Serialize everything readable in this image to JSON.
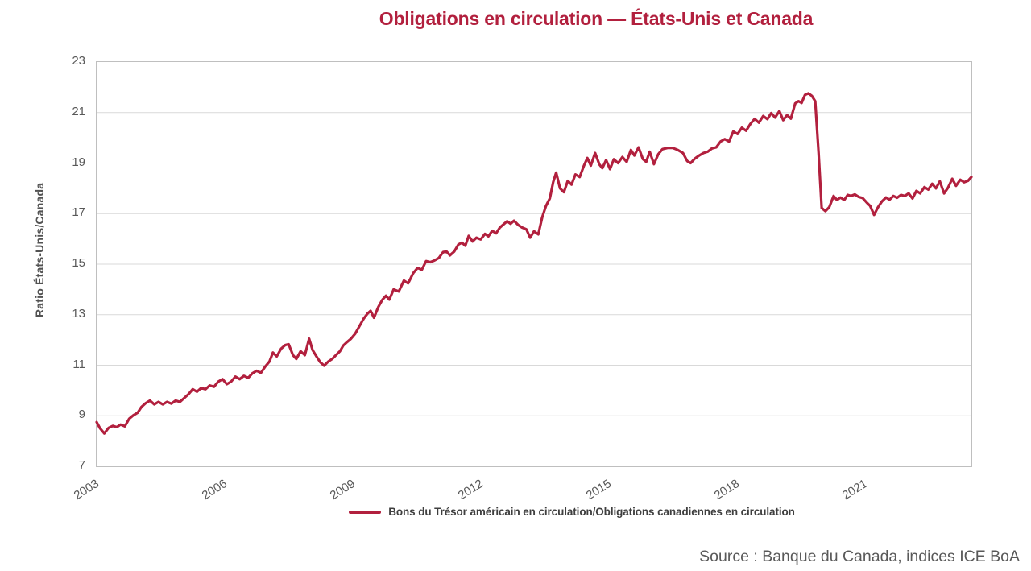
{
  "source": "Source : Banque du Canada, indices ICE BoA",
  "colors": {
    "accent": "#b2203e",
    "axis_text": "#595959",
    "axis_title_text": "#525252",
    "legend_text": "#3f3f3f",
    "gridline": "#d9d9d9",
    "plot_border": "#bfbfbf"
  },
  "chart_data": {
    "type": "line",
    "title": "Obligations en circulation — États-Unis et Canada",
    "ylabel": "Ratio États-Unis/Canada",
    "xlabel": "",
    "ylim": [
      7,
      23
    ],
    "xlim": [
      2003,
      2023.5
    ],
    "y_ticks": [
      7,
      9,
      11,
      13,
      15,
      17,
      19,
      21,
      23
    ],
    "x_ticks": [
      2003,
      2006,
      2009,
      2012,
      2015,
      2018,
      2021
    ],
    "grid": "horizontal",
    "legend_position": "bottom",
    "series": [
      {
        "name": "Bons du Trésor américain en circulation/Obligations canadiennes en circulation",
        "color": "#b2203e",
        "points": [
          [
            2003.0,
            8.75
          ],
          [
            2003.08,
            8.5
          ],
          [
            2003.18,
            8.3
          ],
          [
            2003.28,
            8.52
          ],
          [
            2003.38,
            8.6
          ],
          [
            2003.47,
            8.55
          ],
          [
            2003.56,
            8.65
          ],
          [
            2003.66,
            8.58
          ],
          [
            2003.76,
            8.88
          ],
          [
            2003.86,
            9.02
          ],
          [
            2003.96,
            9.12
          ],
          [
            2004.05,
            9.35
          ],
          [
            2004.15,
            9.5
          ],
          [
            2004.25,
            9.6
          ],
          [
            2004.35,
            9.45
          ],
          [
            2004.45,
            9.55
          ],
          [
            2004.55,
            9.45
          ],
          [
            2004.65,
            9.55
          ],
          [
            2004.75,
            9.48
          ],
          [
            2004.85,
            9.6
          ],
          [
            2004.95,
            9.55
          ],
          [
            2005.05,
            9.7
          ],
          [
            2005.15,
            9.85
          ],
          [
            2005.25,
            10.05
          ],
          [
            2005.35,
            9.95
          ],
          [
            2005.45,
            10.1
          ],
          [
            2005.55,
            10.05
          ],
          [
            2005.65,
            10.2
          ],
          [
            2005.75,
            10.15
          ],
          [
            2005.85,
            10.35
          ],
          [
            2005.95,
            10.45
          ],
          [
            2006.05,
            10.25
          ],
          [
            2006.15,
            10.35
          ],
          [
            2006.25,
            10.55
          ],
          [
            2006.35,
            10.45
          ],
          [
            2006.45,
            10.58
          ],
          [
            2006.55,
            10.5
          ],
          [
            2006.65,
            10.68
          ],
          [
            2006.75,
            10.78
          ],
          [
            2006.85,
            10.7
          ],
          [
            2006.95,
            10.95
          ],
          [
            2007.05,
            11.15
          ],
          [
            2007.13,
            11.5
          ],
          [
            2007.22,
            11.35
          ],
          [
            2007.32,
            11.65
          ],
          [
            2007.42,
            11.8
          ],
          [
            2007.5,
            11.83
          ],
          [
            2007.6,
            11.4
          ],
          [
            2007.68,
            11.25
          ],
          [
            2007.78,
            11.55
          ],
          [
            2007.88,
            11.4
          ],
          [
            2007.98,
            12.05
          ],
          [
            2008.06,
            11.6
          ],
          [
            2008.14,
            11.38
          ],
          [
            2008.24,
            11.12
          ],
          [
            2008.33,
            10.98
          ],
          [
            2008.43,
            11.15
          ],
          [
            2008.52,
            11.25
          ],
          [
            2008.61,
            11.4
          ],
          [
            2008.7,
            11.55
          ],
          [
            2008.78,
            11.78
          ],
          [
            2008.87,
            11.92
          ],
          [
            2008.96,
            12.05
          ],
          [
            2009.06,
            12.25
          ],
          [
            2009.16,
            12.55
          ],
          [
            2009.26,
            12.85
          ],
          [
            2009.35,
            13.05
          ],
          [
            2009.42,
            13.15
          ],
          [
            2009.5,
            12.88
          ],
          [
            2009.6,
            13.3
          ],
          [
            2009.7,
            13.6
          ],
          [
            2009.78,
            13.75
          ],
          [
            2009.86,
            13.6
          ],
          [
            2009.96,
            14.0
          ],
          [
            2010.08,
            13.92
          ],
          [
            2010.2,
            14.35
          ],
          [
            2010.3,
            14.24
          ],
          [
            2010.42,
            14.65
          ],
          [
            2010.52,
            14.85
          ],
          [
            2010.62,
            14.78
          ],
          [
            2010.72,
            15.12
          ],
          [
            2010.82,
            15.08
          ],
          [
            2010.92,
            15.15
          ],
          [
            2011.02,
            15.25
          ],
          [
            2011.12,
            15.48
          ],
          [
            2011.2,
            15.5
          ],
          [
            2011.28,
            15.35
          ],
          [
            2011.38,
            15.5
          ],
          [
            2011.48,
            15.78
          ],
          [
            2011.56,
            15.85
          ],
          [
            2011.64,
            15.73
          ],
          [
            2011.72,
            16.12
          ],
          [
            2011.81,
            15.9
          ],
          [
            2011.9,
            16.05
          ],
          [
            2012.0,
            15.98
          ],
          [
            2012.1,
            16.2
          ],
          [
            2012.18,
            16.1
          ],
          [
            2012.27,
            16.32
          ],
          [
            2012.36,
            16.22
          ],
          [
            2012.45,
            16.45
          ],
          [
            2012.54,
            16.58
          ],
          [
            2012.62,
            16.7
          ],
          [
            2012.7,
            16.6
          ],
          [
            2012.78,
            16.72
          ],
          [
            2012.88,
            16.55
          ],
          [
            2012.97,
            16.45
          ],
          [
            2013.07,
            16.38
          ],
          [
            2013.16,
            16.05
          ],
          [
            2013.25,
            16.3
          ],
          [
            2013.35,
            16.18
          ],
          [
            2013.44,
            16.85
          ],
          [
            2013.53,
            17.3
          ],
          [
            2013.62,
            17.6
          ],
          [
            2013.7,
            18.25
          ],
          [
            2013.77,
            18.62
          ],
          [
            2013.86,
            18.0
          ],
          [
            2013.95,
            17.85
          ],
          [
            2014.04,
            18.3
          ],
          [
            2014.13,
            18.15
          ],
          [
            2014.22,
            18.55
          ],
          [
            2014.32,
            18.45
          ],
          [
            2014.42,
            18.9
          ],
          [
            2014.5,
            19.2
          ],
          [
            2014.58,
            18.9
          ],
          [
            2014.68,
            19.4
          ],
          [
            2014.78,
            18.95
          ],
          [
            2014.85,
            18.8
          ],
          [
            2014.94,
            19.12
          ],
          [
            2015.03,
            18.76
          ],
          [
            2015.12,
            19.15
          ],
          [
            2015.22,
            19.0
          ],
          [
            2015.32,
            19.24
          ],
          [
            2015.42,
            19.05
          ],
          [
            2015.52,
            19.52
          ],
          [
            2015.6,
            19.3
          ],
          [
            2015.7,
            19.62
          ],
          [
            2015.8,
            19.16
          ],
          [
            2015.88,
            19.05
          ],
          [
            2015.96,
            19.45
          ],
          [
            2016.06,
            18.96
          ],
          [
            2016.16,
            19.35
          ],
          [
            2016.26,
            19.55
          ],
          [
            2016.38,
            19.6
          ],
          [
            2016.5,
            19.6
          ],
          [
            2016.62,
            19.52
          ],
          [
            2016.74,
            19.4
          ],
          [
            2016.84,
            19.08
          ],
          [
            2016.92,
            19.0
          ],
          [
            2017.02,
            19.18
          ],
          [
            2017.12,
            19.3
          ],
          [
            2017.22,
            19.4
          ],
          [
            2017.32,
            19.45
          ],
          [
            2017.42,
            19.58
          ],
          [
            2017.52,
            19.62
          ],
          [
            2017.62,
            19.85
          ],
          [
            2017.72,
            19.95
          ],
          [
            2017.82,
            19.85
          ],
          [
            2017.92,
            20.25
          ],
          [
            2018.02,
            20.15
          ],
          [
            2018.12,
            20.4
          ],
          [
            2018.22,
            20.28
          ],
          [
            2018.32,
            20.55
          ],
          [
            2018.42,
            20.75
          ],
          [
            2018.52,
            20.6
          ],
          [
            2018.62,
            20.86
          ],
          [
            2018.72,
            20.74
          ],
          [
            2018.81,
            20.98
          ],
          [
            2018.9,
            20.8
          ],
          [
            2019.0,
            21.06
          ],
          [
            2019.09,
            20.7
          ],
          [
            2019.18,
            20.9
          ],
          [
            2019.27,
            20.76
          ],
          [
            2019.37,
            21.36
          ],
          [
            2019.45,
            21.45
          ],
          [
            2019.52,
            21.38
          ],
          [
            2019.6,
            21.7
          ],
          [
            2019.68,
            21.76
          ],
          [
            2019.76,
            21.66
          ],
          [
            2019.84,
            21.45
          ],
          [
            2019.92,
            19.4
          ],
          [
            2019.99,
            17.22
          ],
          [
            2020.08,
            17.1
          ],
          [
            2020.17,
            17.26
          ],
          [
            2020.27,
            17.7
          ],
          [
            2020.35,
            17.54
          ],
          [
            2020.43,
            17.64
          ],
          [
            2020.52,
            17.54
          ],
          [
            2020.6,
            17.74
          ],
          [
            2020.68,
            17.7
          ],
          [
            2020.77,
            17.76
          ],
          [
            2020.86,
            17.66
          ],
          [
            2020.95,
            17.62
          ],
          [
            2021.04,
            17.45
          ],
          [
            2021.13,
            17.3
          ],
          [
            2021.22,
            16.95
          ],
          [
            2021.31,
            17.25
          ],
          [
            2021.4,
            17.48
          ],
          [
            2021.5,
            17.64
          ],
          [
            2021.58,
            17.55
          ],
          [
            2021.67,
            17.7
          ],
          [
            2021.76,
            17.63
          ],
          [
            2021.85,
            17.74
          ],
          [
            2021.94,
            17.7
          ],
          [
            2022.03,
            17.8
          ],
          [
            2022.12,
            17.6
          ],
          [
            2022.21,
            17.9
          ],
          [
            2022.3,
            17.8
          ],
          [
            2022.4,
            18.05
          ],
          [
            2022.49,
            17.95
          ],
          [
            2022.58,
            18.18
          ],
          [
            2022.67,
            18.0
          ],
          [
            2022.76,
            18.28
          ],
          [
            2022.86,
            17.8
          ],
          [
            2022.95,
            18.02
          ],
          [
            2023.05,
            18.38
          ],
          [
            2023.14,
            18.1
          ],
          [
            2023.24,
            18.34
          ],
          [
            2023.33,
            18.24
          ],
          [
            2023.42,
            18.3
          ],
          [
            2023.5,
            18.45
          ]
        ]
      }
    ]
  }
}
